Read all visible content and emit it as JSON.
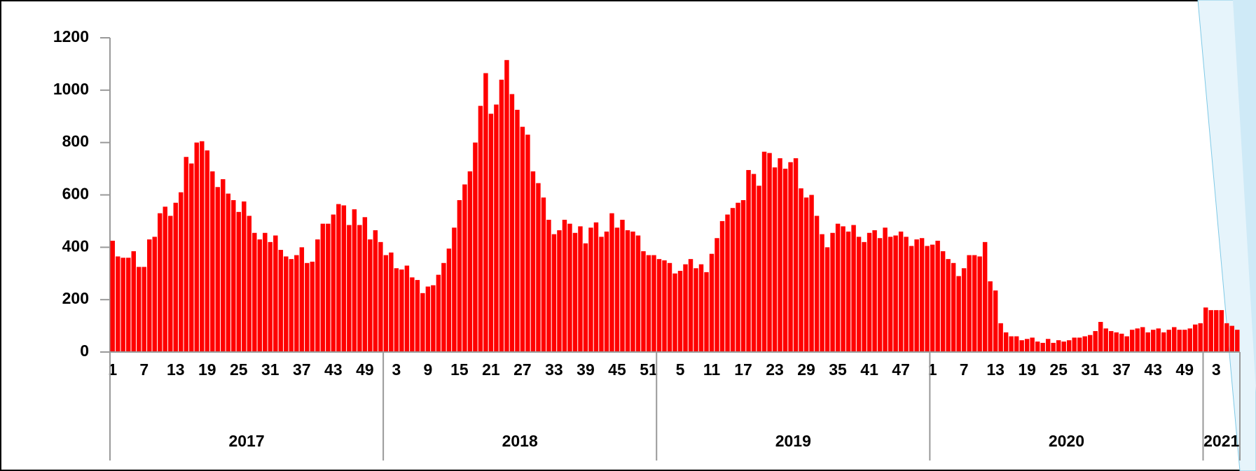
{
  "chart_data": {
    "type": "bar",
    "color": "#ff0000",
    "ylim": [
      0,
      1200
    ],
    "yticks": [
      0,
      200,
      400,
      600,
      800,
      1000,
      1200
    ],
    "categories": [
      "1",
      null,
      null,
      null,
      null,
      null,
      "7",
      null,
      null,
      null,
      null,
      null,
      "13",
      null,
      null,
      null,
      null,
      null,
      "19",
      null,
      null,
      null,
      null,
      null,
      "25",
      null,
      null,
      null,
      null,
      null,
      "31",
      null,
      null,
      null,
      null,
      null,
      "37",
      null,
      null,
      null,
      null,
      null,
      "43",
      null,
      null,
      null,
      null,
      null,
      "49",
      null,
      null,
      null,
      null,
      null,
      "3",
      null,
      null,
      null,
      null,
      null,
      "9",
      null,
      null,
      null,
      null,
      null,
      "15",
      null,
      null,
      null,
      null,
      null,
      "21",
      null,
      null,
      null,
      null,
      null,
      "27",
      null,
      null,
      null,
      null,
      null,
      "33",
      null,
      null,
      null,
      null,
      null,
      "39",
      null,
      null,
      null,
      null,
      null,
      "45",
      null,
      null,
      null,
      null,
      null,
      "51",
      null,
      null,
      null,
      null,
      null,
      "5",
      null,
      null,
      null,
      null,
      null,
      "11",
      null,
      null,
      null,
      null,
      null,
      "17",
      null,
      null,
      null,
      null,
      null,
      "23",
      null,
      null,
      null,
      null,
      null,
      "29",
      null,
      null,
      null,
      null,
      null,
      "35",
      null,
      null,
      null,
      null,
      null,
      "41",
      null,
      null,
      null,
      null,
      null,
      "47",
      null,
      null,
      null,
      null,
      null,
      "1",
      null,
      null,
      null,
      null,
      null,
      "7",
      null,
      null,
      null,
      null,
      null,
      "13",
      null,
      null,
      null,
      null,
      null,
      "19",
      null,
      null,
      null,
      null,
      null,
      "25",
      null,
      null,
      null,
      null,
      null,
      "31",
      null,
      null,
      null,
      null,
      null,
      "37",
      null,
      null,
      null,
      null,
      null,
      "43",
      null,
      null,
      null,
      null,
      null,
      "49",
      null,
      null,
      null,
      null,
      null,
      "3",
      null,
      null,
      null,
      null
    ],
    "values": [
      425,
      365,
      360,
      360,
      385,
      325,
      325,
      430,
      440,
      530,
      555,
      520,
      570,
      610,
      745,
      720,
      800,
      805,
      770,
      690,
      630,
      660,
      605,
      580,
      535,
      575,
      520,
      455,
      430,
      455,
      420,
      445,
      390,
      365,
      355,
      370,
      400,
      340,
      345,
      430,
      490,
      490,
      525,
      565,
      560,
      485,
      545,
      485,
      515,
      430,
      465,
      420,
      370,
      380,
      320,
      315,
      330,
      285,
      275,
      225,
      250,
      255,
      295,
      340,
      395,
      475,
      580,
      640,
      690,
      800,
      940,
      1065,
      910,
      945,
      1040,
      1115,
      985,
      925,
      860,
      830,
      690,
      645,
      590,
      505,
      450,
      465,
      505,
      490,
      455,
      480,
      415,
      475,
      495,
      440,
      460,
      530,
      475,
      505,
      465,
      460,
      445,
      385,
      370,
      370,
      355,
      350,
      340,
      300,
      310,
      335,
      355,
      320,
      335,
      305,
      375,
      435,
      500,
      525,
      550,
      570,
      580,
      695,
      680,
      635,
      765,
      760,
      705,
      740,
      700,
      725,
      740,
      625,
      590,
      600,
      520,
      450,
      400,
      455,
      490,
      480,
      460,
      485,
      440,
      420,
      455,
      465,
      435,
      475,
      440,
      445,
      460,
      440,
      405,
      430,
      435,
      405,
      410,
      425,
      385,
      355,
      340,
      290,
      320,
      370,
      370,
      365,
      420,
      270,
      235,
      110,
      75,
      60,
      60,
      45,
      50,
      55,
      40,
      35,
      50,
      35,
      45,
      40,
      45,
      55,
      55,
      60,
      65,
      80,
      115,
      90,
      80,
      75,
      70,
      60,
      85,
      90,
      95,
      75,
      85,
      90,
      75,
      85,
      95,
      85,
      85,
      90,
      105,
      110,
      170,
      160,
      160,
      160,
      110,
      100,
      85
    ],
    "groups": [
      {
        "label": "2017",
        "size": 52
      },
      {
        "label": "2018",
        "size": 52
      },
      {
        "label": "2019",
        "size": 52
      },
      {
        "label": "2020",
        "size": 52
      },
      {
        "label": "2021",
        "size": 7
      }
    ]
  }
}
